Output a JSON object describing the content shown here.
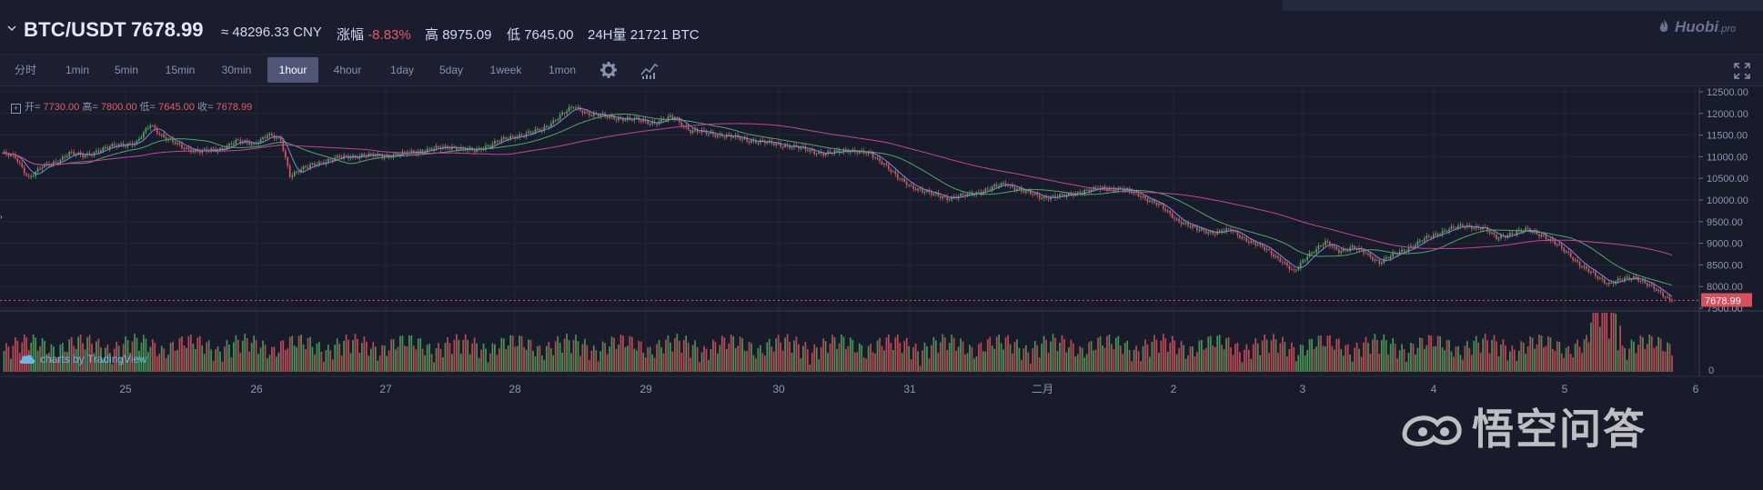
{
  "header": {
    "pair": "BTC/USDT",
    "price": "7678.99",
    "cny": "≈ 48296.33 CNY",
    "change_label": "涨幅",
    "change_value": "-8.83%",
    "high_label": "高",
    "high_value": "8975.09",
    "low_label": "低",
    "low_value": "7645.00",
    "volume_label": "24H量",
    "volume_value": "21721 BTC",
    "logo_text": "Huobi",
    "logo_suffix": ".pro"
  },
  "toolbar": {
    "timeframes": [
      "分时",
      "1min",
      "5min",
      "15min",
      "30min",
      "1hour",
      "4hour",
      "1day",
      "5day",
      "1week",
      "1mon"
    ],
    "active": "1hour",
    "icons": [
      "gear-icon",
      "indicator-icon",
      "fullscreen-icon"
    ]
  },
  "legend": {
    "open_label": "开=",
    "open": "7730.00",
    "high_label": "高=",
    "high": "7800.00",
    "low_label": "低=",
    "low": "7645.00",
    "close_label": "收=",
    "close": "7678.99"
  },
  "credit": "charts by TradingView",
  "watermark": "悟空问答",
  "chart_data": {
    "type": "candlestick",
    "price_axis": [
      "12500.00",
      "12000.00",
      "11500.00",
      "11000.00",
      "10500.00",
      "10000.00",
      "9500.00",
      "9000.00",
      "8500.00",
      "8000.00",
      "7500.00"
    ],
    "ylim": [
      7500,
      12500
    ],
    "last_price_label": "7678.99",
    "date_labels": [
      "25",
      "26",
      "27",
      "28",
      "29",
      "30",
      "31",
      "二月",
      "2",
      "3",
      "4",
      "5",
      "6"
    ],
    "volume_axis": [
      "0"
    ],
    "close_anchors": [
      [
        0,
        11080
      ],
      [
        6,
        10980
      ],
      [
        12,
        10520
      ],
      [
        18,
        10760
      ],
      [
        24,
        10880
      ],
      [
        30,
        11080
      ],
      [
        36,
        11020
      ],
      [
        44,
        11160
      ],
      [
        52,
        11280
      ],
      [
        60,
        11320
      ],
      [
        66,
        11750
      ],
      [
        72,
        11450
      ],
      [
        80,
        11220
      ],
      [
        88,
        11120
      ],
      [
        96,
        11160
      ],
      [
        104,
        11350
      ],
      [
        112,
        11300
      ],
      [
        118,
        11500
      ],
      [
        124,
        11380
      ],
      [
        128,
        10580
      ],
      [
        134,
        10720
      ],
      [
        140,
        10850
      ],
      [
        150,
        10980
      ],
      [
        160,
        11030
      ],
      [
        170,
        11020
      ],
      [
        180,
        11080
      ],
      [
        190,
        11170
      ],
      [
        200,
        11230
      ],
      [
        210,
        11130
      ],
      [
        220,
        11350
      ],
      [
        230,
        11500
      ],
      [
        240,
        11620
      ],
      [
        248,
        11950
      ],
      [
        254,
        12150
      ],
      [
        262,
        11980
      ],
      [
        272,
        11900
      ],
      [
        282,
        11850
      ],
      [
        290,
        11780
      ],
      [
        298,
        11920
      ],
      [
        306,
        11600
      ],
      [
        316,
        11530
      ],
      [
        326,
        11440
      ],
      [
        336,
        11350
      ],
      [
        346,
        11280
      ],
      [
        356,
        11180
      ],
      [
        366,
        11060
      ],
      [
        376,
        11160
      ],
      [
        386,
        11050
      ],
      [
        392,
        10850
      ],
      [
        398,
        10500
      ],
      [
        404,
        10320
      ],
      [
        412,
        10150
      ],
      [
        420,
        10050
      ],
      [
        428,
        10100
      ],
      [
        436,
        10220
      ],
      [
        446,
        10380
      ],
      [
        454,
        10200
      ],
      [
        462,
        10060
      ],
      [
        472,
        10090
      ],
      [
        480,
        10200
      ],
      [
        490,
        10280
      ],
      [
        498,
        10250
      ],
      [
        506,
        10100
      ],
      [
        514,
        9880
      ],
      [
        522,
        9550
      ],
      [
        530,
        9330
      ],
      [
        538,
        9250
      ],
      [
        546,
        9300
      ],
      [
        554,
        9050
      ],
      [
        562,
        8850
      ],
      [
        568,
        8620
      ],
      [
        574,
        8320
      ],
      [
        580,
        8730
      ],
      [
        588,
        9010
      ],
      [
        594,
        8830
      ],
      [
        600,
        8900
      ],
      [
        606,
        8770
      ],
      [
        612,
        8560
      ],
      [
        618,
        8720
      ],
      [
        626,
        8930
      ],
      [
        634,
        9140
      ],
      [
        642,
        9320
      ],
      [
        650,
        9400
      ],
      [
        658,
        9360
      ],
      [
        664,
        9120
      ],
      [
        670,
        9220
      ],
      [
        678,
        9310
      ],
      [
        684,
        9200
      ],
      [
        690,
        8990
      ],
      [
        696,
        8770
      ],
      [
        702,
        8450
      ],
      [
        708,
        8250
      ],
      [
        714,
        8070
      ],
      [
        720,
        8160
      ],
      [
        726,
        8220
      ],
      [
        732,
        8020
      ],
      [
        738,
        7800
      ],
      [
        742,
        7679
      ]
    ],
    "candle_count": 742,
    "series": [
      {
        "name": "MA",
        "color": "#7f88e6"
      },
      {
        "name": "MA",
        "color": "#4fa86a"
      },
      {
        "name": "MA",
        "color": "#c3449a"
      }
    ],
    "up_color": "#4fa85a",
    "down_color": "#d9505c"
  }
}
